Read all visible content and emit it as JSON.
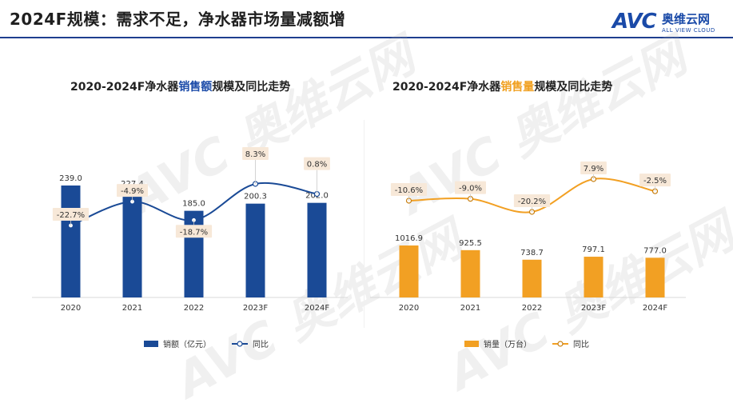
{
  "page": {
    "title": "2024F规模：需求不足，净水器市场量减额增",
    "logo_mark": "AVC",
    "logo_cn": "奥维云网",
    "logo_en": "ALL VIEW CLOUD"
  },
  "colors": {
    "blue": "#1a4a96",
    "orange": "#f2a023",
    "label_bg": "#f7e8d8"
  },
  "chart_data": [
    {
      "type": "bar",
      "title_prefix": "2020-2024F净水器",
      "title_highlight": "销售额",
      "title_suffix": "规模及同比走势",
      "categories": [
        "2020",
        "2021",
        "2022",
        "2023F",
        "2024F"
      ],
      "series": [
        {
          "name": "销额（亿元）",
          "type": "bar",
          "values": [
            239.0,
            227.4,
            185.0,
            200.3,
            202.0
          ],
          "labels": [
            "239.0",
            "227.4",
            "185.0",
            "200.3",
            "202.0"
          ]
        },
        {
          "name": "同比",
          "type": "line",
          "values": [
            -22.7,
            -4.9,
            -18.7,
            8.3,
            0.8
          ],
          "labels": [
            "-22.7%",
            "-4.9%",
            "-18.7%",
            "8.3%",
            "0.8%"
          ]
        }
      ]
    },
    {
      "type": "bar",
      "title_prefix": "2020-2024F净水器",
      "title_highlight": "销售量",
      "title_suffix": "规模及同比走势",
      "categories": [
        "2020",
        "2021",
        "2022",
        "2023F",
        "2024F"
      ],
      "series": [
        {
          "name": "销量（万台）",
          "type": "bar",
          "values": [
            1016.9,
            925.5,
            738.7,
            797.1,
            777.0
          ],
          "labels": [
            "1016.9",
            "925.5",
            "738.7",
            "797.1",
            "777.0"
          ]
        },
        {
          "name": "同比",
          "type": "line",
          "values": [
            -10.6,
            -9.0,
            -20.2,
            7.9,
            -2.5
          ],
          "labels": [
            "-10.6%",
            "-9.0%",
            "-20.2%",
            "7.9%",
            "-2.5%"
          ]
        }
      ]
    }
  ]
}
